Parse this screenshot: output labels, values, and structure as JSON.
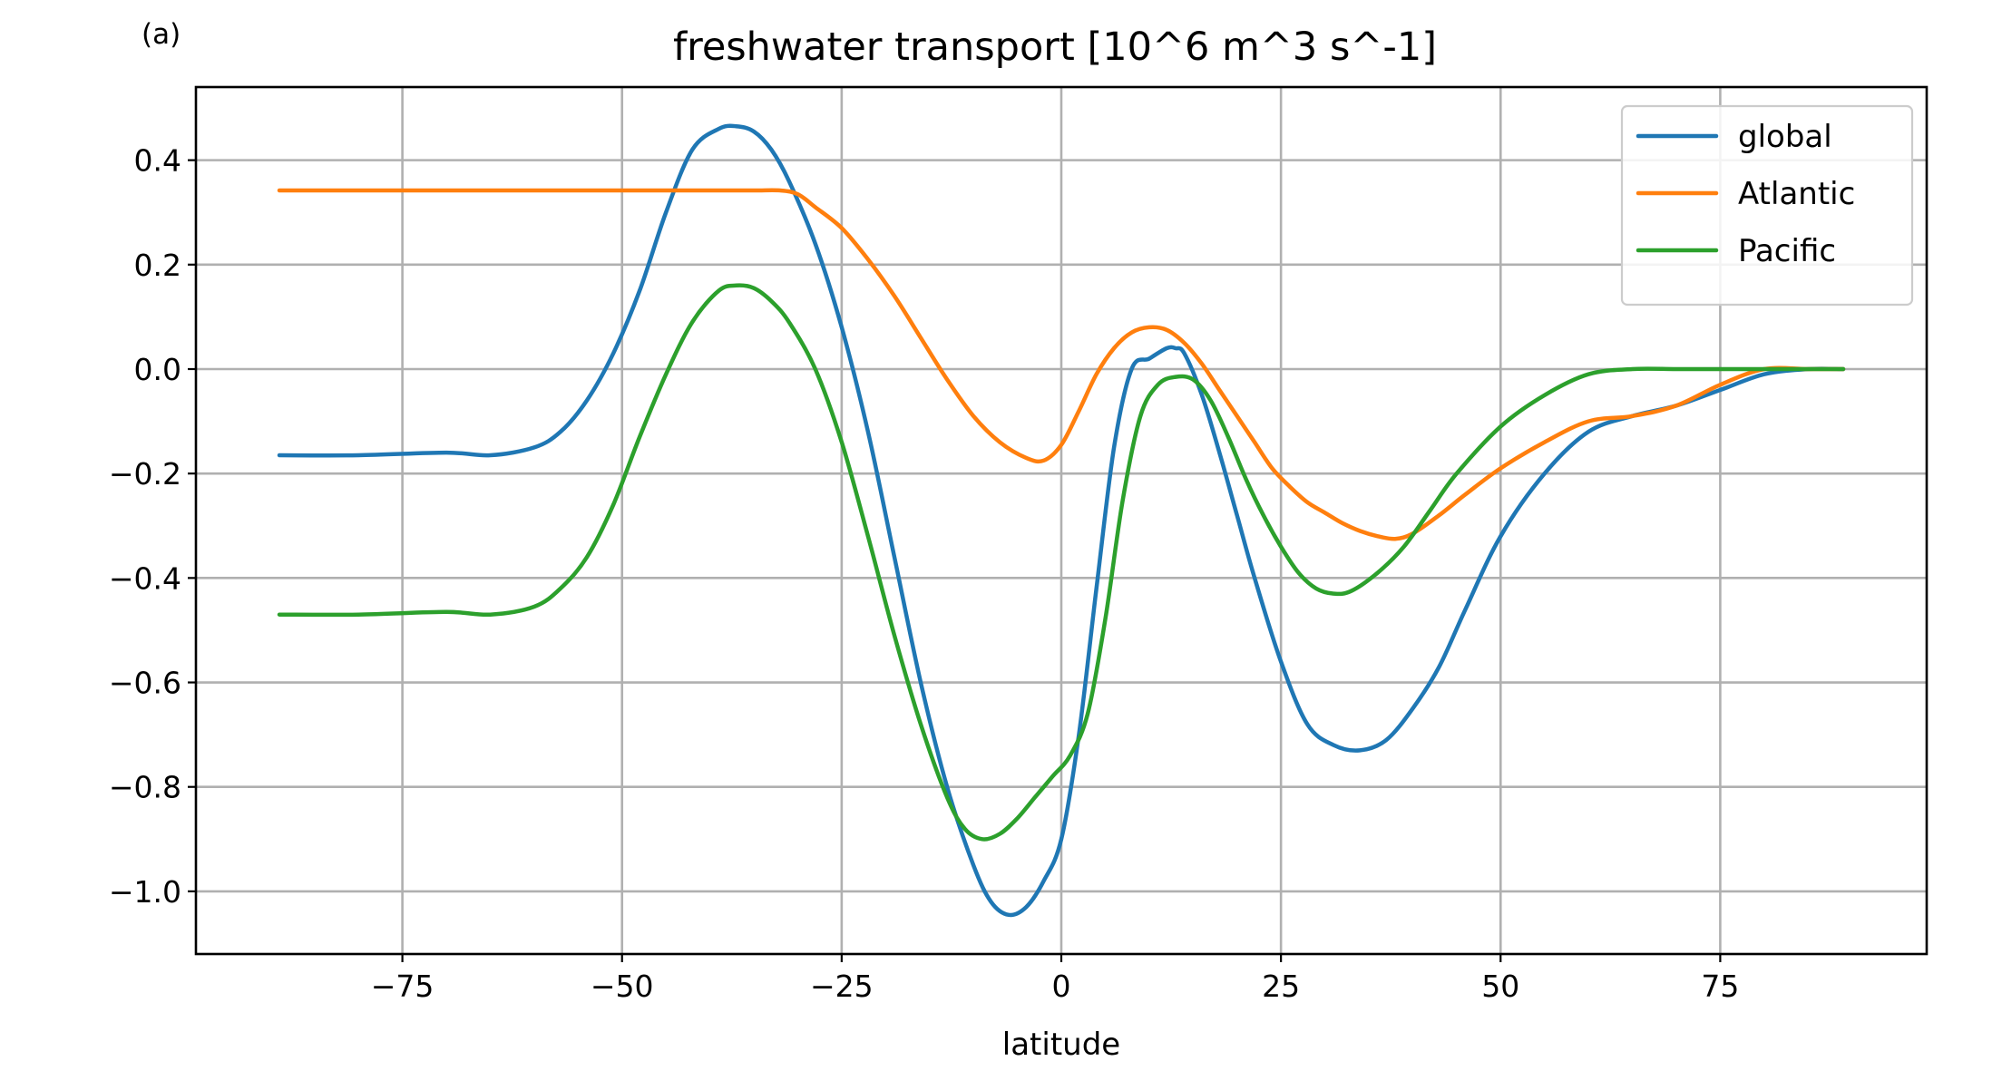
{
  "panel_label": "(a)",
  "colors": {
    "global": "#1f77b4",
    "Atlantic": "#ff7f0e",
    "Pacific": "#2ca02c",
    "grid": "#b0b0b0"
  },
  "chart_data": {
    "type": "line",
    "title": "freshwater transport [10^6 m^3 s^-1]",
    "xlabel": "latitude",
    "ylabel": "",
    "xlim": [
      -98.5,
      98.5
    ],
    "ylim": [
      -1.12,
      0.54
    ],
    "xticks": [
      -75,
      -50,
      -25,
      0,
      25,
      50,
      75
    ],
    "xtick_labels": [
      "−75",
      "−50",
      "−25",
      "0",
      "25",
      "50",
      "75"
    ],
    "yticks": [
      0.4,
      0.2,
      0.0,
      -0.2,
      -0.4,
      -0.6,
      -0.8,
      -1.0
    ],
    "ytick_labels": [
      "0.4",
      "0.2",
      "0.0",
      "−0.2",
      "−0.4",
      "−0.6",
      "−0.8",
      "−1.0"
    ],
    "grid": true,
    "legend_position": "top-right",
    "series": [
      {
        "name": "global",
        "color": "#1f77b4",
        "x": [
          -89,
          -80,
          -70,
          -65,
          -60,
          -57,
          -54,
          -51,
          -48,
          -45,
          -42,
          -39,
          -37,
          -35,
          -33,
          -31,
          -28,
          -25,
          -22,
          -19,
          -16,
          -13,
          -10,
          -8,
          -6,
          -4,
          -2,
          0,
          2,
          4,
          6,
          8,
          10,
          12,
          13,
          14,
          16,
          18,
          20,
          22,
          25,
          28,
          31,
          34,
          37,
          40,
          43,
          46,
          50,
          55,
          60,
          65,
          70,
          75,
          80,
          85,
          89
        ],
        "y": [
          -0.165,
          -0.165,
          -0.16,
          -0.165,
          -0.15,
          -0.12,
          -0.06,
          0.03,
          0.15,
          0.3,
          0.42,
          0.46,
          0.465,
          0.455,
          0.42,
          0.36,
          0.24,
          0.08,
          -0.12,
          -0.36,
          -0.6,
          -0.8,
          -0.95,
          -1.02,
          -1.045,
          -1.03,
          -0.98,
          -0.9,
          -0.7,
          -0.42,
          -0.15,
          0.0,
          0.02,
          0.04,
          0.04,
          0.03,
          -0.05,
          -0.16,
          -0.28,
          -0.4,
          -0.56,
          -0.68,
          -0.72,
          -0.73,
          -0.71,
          -0.65,
          -0.57,
          -0.46,
          -0.32,
          -0.2,
          -0.12,
          -0.09,
          -0.07,
          -0.04,
          -0.01,
          0.0,
          0.0
        ]
      },
      {
        "name": "Atlantic",
        "color": "#ff7f0e",
        "x": [
          -89,
          -80,
          -70,
          -60,
          -50,
          -40,
          -35,
          -32,
          -30,
          -28,
          -25,
          -22,
          -19,
          -16,
          -13,
          -10,
          -7,
          -4,
          -2,
          0,
          2,
          4,
          6,
          8,
          10,
          12,
          14,
          16,
          18,
          20,
          22,
          24,
          26,
          28,
          30,
          32,
          34,
          36,
          38,
          40,
          43,
          46,
          50,
          55,
          60,
          65,
          70,
          75,
          80,
          85,
          89
        ],
        "y": [
          0.342,
          0.342,
          0.342,
          0.342,
          0.342,
          0.342,
          0.342,
          0.342,
          0.335,
          0.31,
          0.27,
          0.21,
          0.14,
          0.06,
          -0.02,
          -0.09,
          -0.14,
          -0.17,
          -0.175,
          -0.145,
          -0.08,
          -0.01,
          0.04,
          0.07,
          0.08,
          0.075,
          0.05,
          0.01,
          -0.04,
          -0.09,
          -0.14,
          -0.19,
          -0.225,
          -0.255,
          -0.275,
          -0.295,
          -0.31,
          -0.32,
          -0.325,
          -0.315,
          -0.28,
          -0.24,
          -0.19,
          -0.14,
          -0.1,
          -0.09,
          -0.07,
          -0.03,
          0.0,
          0.0,
          0.0
        ]
      },
      {
        "name": "Pacific",
        "color": "#2ca02c",
        "x": [
          -89,
          -80,
          -70,
          -65,
          -60,
          -57,
          -54,
          -51,
          -48,
          -45,
          -42,
          -39,
          -37,
          -35,
          -33,
          -31,
          -28,
          -25,
          -22,
          -19,
          -16,
          -13,
          -11,
          -9,
          -7,
          -5,
          -3,
          -1,
          1,
          3,
          5,
          7,
          9,
          11,
          13,
          15,
          17,
          19,
          21,
          23,
          25,
          27,
          29,
          31,
          33,
          36,
          39,
          42,
          45,
          50,
          55,
          60,
          65,
          70,
          75,
          80,
          89
        ],
        "y": [
          -0.47,
          -0.47,
          -0.465,
          -0.47,
          -0.455,
          -0.42,
          -0.36,
          -0.26,
          -0.13,
          -0.01,
          0.09,
          0.15,
          0.16,
          0.155,
          0.13,
          0.09,
          0.0,
          -0.14,
          -0.32,
          -0.51,
          -0.68,
          -0.82,
          -0.88,
          -0.9,
          -0.89,
          -0.86,
          -0.82,
          -0.78,
          -0.74,
          -0.66,
          -0.48,
          -0.25,
          -0.09,
          -0.03,
          -0.015,
          -0.02,
          -0.06,
          -0.13,
          -0.21,
          -0.28,
          -0.34,
          -0.39,
          -0.42,
          -0.43,
          -0.425,
          -0.39,
          -0.34,
          -0.27,
          -0.2,
          -0.11,
          -0.05,
          -0.01,
          0.0,
          0.0,
          0.0,
          0.0,
          0.0
        ]
      }
    ]
  }
}
